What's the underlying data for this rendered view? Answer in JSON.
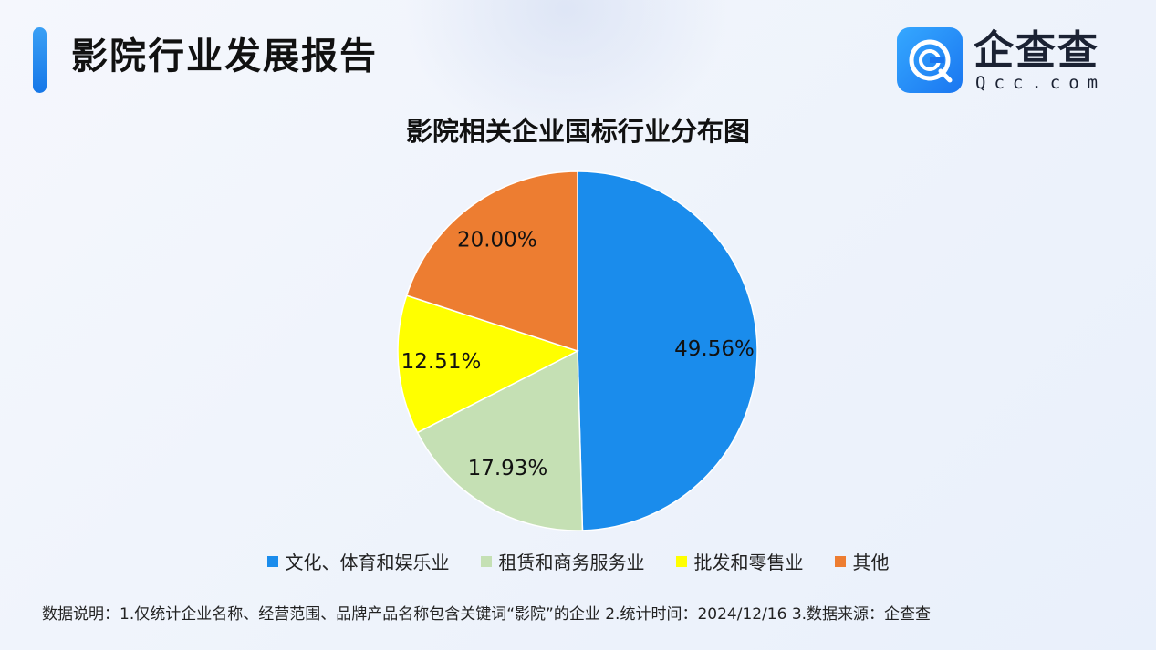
{
  "header": {
    "title": "影院行业发展报告",
    "logo_text": "企查查",
    "logo_domain": "Qcc.com",
    "accent_color": "#1a7ff0"
  },
  "chart_data": {
    "type": "pie",
    "title": "影院相关企业国标行业分布图",
    "slices": [
      {
        "label": "文化、体育和娱乐业",
        "value": 49.56,
        "display": "49.56%",
        "color": "#1a8cec"
      },
      {
        "label": "租赁和商务服务业",
        "value": 17.93,
        "display": "17.93%",
        "color": "#c5e0b4"
      },
      {
        "label": "批发和零售业",
        "value": 12.51,
        "display": "12.51%",
        "color": "#ffff00"
      },
      {
        "label": "其他",
        "value": 20.0,
        "display": "20.00%",
        "color": "#ed7d31"
      }
    ],
    "legend_position": "bottom",
    "start": "12 o'clock",
    "direction": "clockwise"
  },
  "footnote": "数据说明：1.仅统计企业名称、经营范围、品牌产品名称包含关键词“影院”的企业   2.统计时间：2024/12/16    3.数据来源：企查查"
}
